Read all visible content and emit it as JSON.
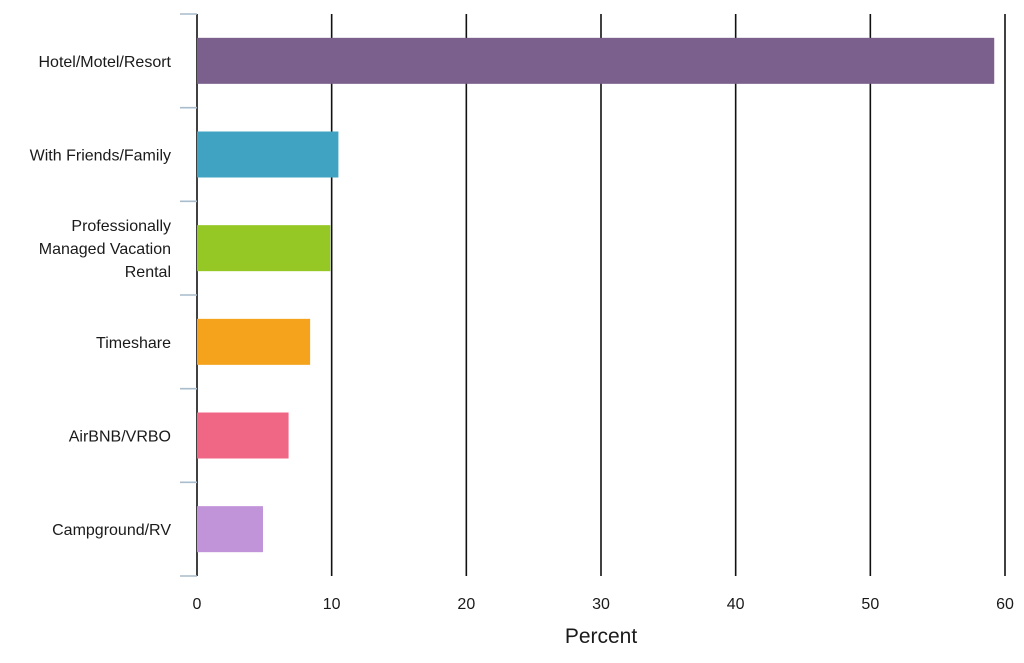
{
  "chart_data": {
    "type": "bar",
    "orientation": "horizontal",
    "categories": [
      [
        "Hotel/Motel/Resort"
      ],
      [
        "With Friends/Family"
      ],
      [
        "Professionally",
        "Managed Vacation",
        "Rental"
      ],
      [
        "Timeshare"
      ],
      [
        "AirBNB/VRBO"
      ],
      [
        "Campground/RV"
      ]
    ],
    "values": [
      59.2,
      10.5,
      9.9,
      8.4,
      6.8,
      4.9
    ],
    "colors": [
      "#7b5f8c",
      "#40a3c2",
      "#95c825",
      "#f5a21c",
      "#f06685",
      "#c193d9"
    ],
    "title": "",
    "xlabel": "Percent",
    "ylabel": "",
    "xlim": [
      0,
      60
    ],
    "xticks": [
      0,
      10,
      20,
      30,
      40,
      50,
      60
    ],
    "grid": "vertical"
  }
}
